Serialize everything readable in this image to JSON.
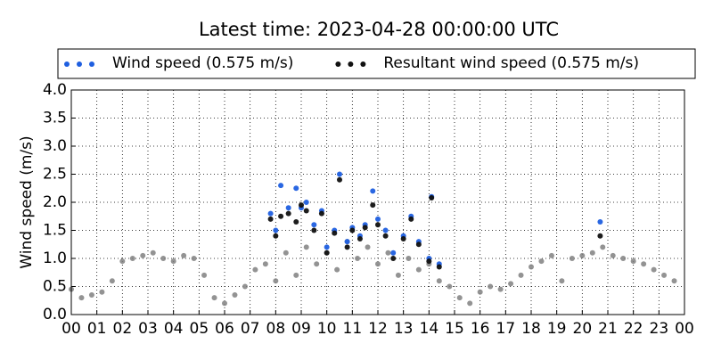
{
  "chart_data": {
    "type": "scatter",
    "title": "Latest time: 2023-04-28 00:00:00 UTC",
    "y_label": "Wind speed (m/s)",
    "xlim": [
      0,
      24
    ],
    "ylim": [
      0,
      4
    ],
    "xticks": [
      {
        "value": 0,
        "label": "00"
      },
      {
        "value": 1,
        "label": "01"
      },
      {
        "value": 2,
        "label": "02"
      },
      {
        "value": 3,
        "label": "03"
      },
      {
        "value": 4,
        "label": "04"
      },
      {
        "value": 5,
        "label": "05"
      },
      {
        "value": 6,
        "label": "06"
      },
      {
        "value": 7,
        "label": "07"
      },
      {
        "value": 8,
        "label": "08"
      },
      {
        "value": 9,
        "label": "09"
      },
      {
        "value": 10,
        "label": "10"
      },
      {
        "value": 11,
        "label": "11"
      },
      {
        "value": 12,
        "label": "12"
      },
      {
        "value": 13,
        "label": "13"
      },
      {
        "value": 14,
        "label": "14"
      },
      {
        "value": 15,
        "label": "15"
      },
      {
        "value": 16,
        "label": "16"
      },
      {
        "value": 17,
        "label": "17"
      },
      {
        "value": 18,
        "label": "18"
      },
      {
        "value": 19,
        "label": "19"
      },
      {
        "value": 20,
        "label": "20"
      },
      {
        "value": 21,
        "label": "21"
      },
      {
        "value": 22,
        "label": "22"
      },
      {
        "value": 23,
        "label": "23"
      },
      {
        "value": 24,
        "label": "00"
      }
    ],
    "yticks": [
      {
        "value": 0,
        "label": "0.0"
      },
      {
        "value": 0.5,
        "label": "0.5"
      },
      {
        "value": 1,
        "label": "1.0"
      },
      {
        "value": 1.5,
        "label": "1.5"
      },
      {
        "value": 2,
        "label": "2.0"
      },
      {
        "value": 2.5,
        "label": "2.5"
      },
      {
        "value": 3,
        "label": "3.0"
      },
      {
        "value": 3.5,
        "label": "3.5"
      },
      {
        "value": 4,
        "label": "4.0"
      }
    ],
    "grid": true,
    "series": [
      {
        "color": "#808080",
        "x": [
          0,
          0.4,
          0.8,
          1.2,
          1.6,
          2.0,
          2.4,
          2.8,
          3.2,
          3.6,
          4.0,
          4.4,
          4.8,
          5.2,
          5.6,
          6.0,
          6.4,
          6.8,
          7.2,
          7.6,
          8.0,
          8.4,
          8.8,
          9.2,
          9.6,
          10.0,
          10.4,
          10.8,
          11.2,
          11.6,
          12.0,
          12.4,
          12.8,
          13.2,
          13.6,
          14.0,
          14.4,
          14.8,
          15.2,
          15.6,
          16.0,
          16.4,
          16.8,
          17.2,
          17.6,
          18.0,
          18.4,
          18.8,
          19.2,
          19.6,
          20.0,
          20.4,
          20.8,
          21.2,
          21.6,
          22.0,
          22.4,
          22.8,
          23.2,
          23.6
        ],
        "values": [
          0.45,
          0.3,
          0.35,
          0.4,
          0.6,
          0.95,
          1.0,
          1.05,
          1.1,
          1.0,
          0.95,
          1.05,
          1.0,
          0.7,
          0.3,
          0.2,
          0.35,
          0.5,
          0.8,
          0.9,
          0.6,
          1.1,
          0.7,
          1.2,
          0.9,
          1.1,
          0.8,
          1.3,
          1.0,
          1.2,
          0.9,
          1.1,
          0.7,
          1.0,
          0.8,
          0.9,
          0.6,
          0.5,
          0.3,
          0.2,
          0.4,
          0.5,
          0.45,
          0.55,
          0.7,
          0.85,
          0.95,
          1.05,
          0.6,
          1.0,
          1.05,
          1.1,
          1.2,
          1.05,
          1.0,
          0.95,
          0.9,
          0.8,
          0.7,
          0.6
        ]
      },
      {
        "name": "Wind speed (0.575 m/s)",
        "color": "#1f5fe0",
        "x": [
          7.8,
          8.0,
          8.2,
          8.5,
          8.8,
          9.0,
          9.2,
          9.5,
          9.8,
          10.0,
          10.3,
          10.5,
          10.8,
          11.0,
          11.3,
          11.5,
          11.8,
          12.0,
          12.3,
          12.6,
          13.0,
          13.3,
          13.6,
          14.0,
          14.1,
          14.4,
          20.7
        ],
        "values": [
          1.8,
          1.5,
          2.3,
          1.9,
          2.25,
          1.9,
          2.0,
          1.6,
          1.85,
          1.2,
          1.5,
          2.5,
          1.3,
          1.55,
          1.4,
          1.6,
          2.2,
          1.7,
          1.5,
          1.1,
          1.4,
          1.75,
          1.3,
          1.0,
          2.1,
          0.9,
          1.65
        ]
      },
      {
        "name": "Resultant wind speed (0.575 m/s)",
        "color": "#111111",
        "x": [
          7.8,
          8.0,
          8.2,
          8.5,
          8.8,
          9.0,
          9.2,
          9.5,
          9.8,
          10.0,
          10.3,
          10.5,
          10.8,
          11.0,
          11.3,
          11.5,
          11.8,
          12.0,
          12.3,
          12.6,
          13.0,
          13.3,
          13.6,
          14.0,
          14.1,
          14.4,
          20.7
        ],
        "values": [
          1.7,
          1.4,
          1.75,
          1.8,
          1.65,
          1.95,
          1.85,
          1.5,
          1.8,
          1.1,
          1.45,
          2.4,
          1.2,
          1.5,
          1.35,
          1.55,
          1.95,
          1.6,
          1.4,
          1.0,
          1.35,
          1.7,
          1.25,
          0.95,
          2.08,
          0.85,
          1.4
        ]
      }
    ]
  }
}
